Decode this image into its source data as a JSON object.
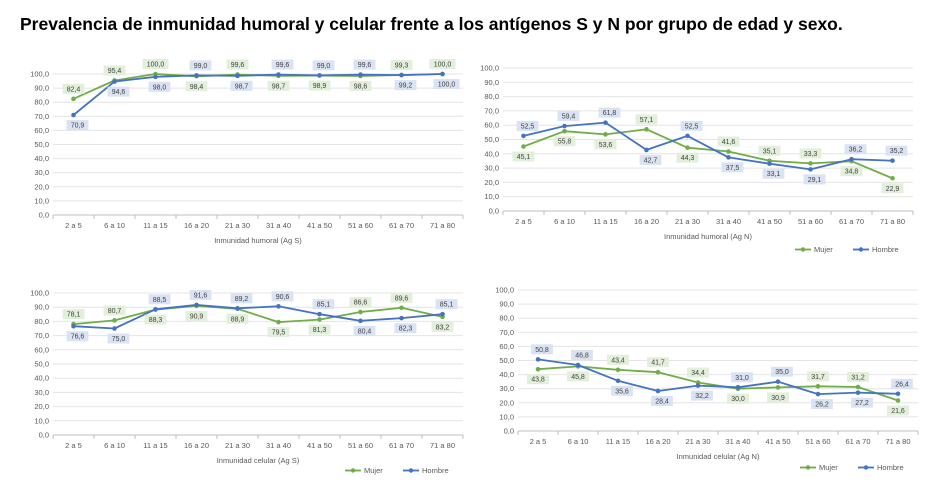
{
  "title": "Prevalencia de inmunidad humoral y celular frente a los antígenos S y N por grupo de edad y sexo.",
  "colors": {
    "mujer": "#70AD47",
    "hombre": "#4472C4",
    "label_mujer_bg": "#E2EFDA",
    "label_hombre_bg": "#DAE3F3"
  },
  "chart_data": [
    {
      "type": "line",
      "xlabel": "Inmunidad humoral (Ag S)",
      "categories": [
        "2 a 5",
        "6 a 10",
        "11 a 15",
        "16 a 20",
        "21 a 30",
        "31 a 40",
        "41 a 50",
        "51 a 60",
        "61 a 70",
        "71 a 80"
      ],
      "ylim": [
        0,
        100
      ],
      "ystep": 10,
      "ytick_labels": [
        "0,0",
        "10,0",
        "20,0",
        "30,0",
        "40,0",
        "50,0",
        "60,0",
        "70,0",
        "80,0",
        "90,0",
        "100,0"
      ],
      "series": [
        {
          "name": "Mujer",
          "values": [
            82.4,
            95.4,
            100.0,
            98.4,
            99.6,
            98.7,
            98.9,
            98.6,
            99.3,
            100.0
          ],
          "labels": [
            "82,4",
            "95,4",
            "100,0",
            "98,4",
            "99,6",
            "98,7",
            "98,9",
            "98,6",
            "99,3",
            "100,0"
          ]
        },
        {
          "name": "Hombre",
          "values": [
            70.9,
            94.6,
            98.0,
            99.0,
            98.7,
            99.6,
            99.0,
            99.6,
            99.2,
            100.0
          ],
          "labels": [
            "70,9",
            "94,6",
            "98,0",
            "99,0",
            "98,7",
            "99,6",
            "99,0",
            "99,6",
            "99,2",
            "100,0"
          ]
        }
      ],
      "legend": false
    },
    {
      "type": "line",
      "xlabel": "Inmunidad humoral (Ag N)",
      "categories": [
        "2 a 5",
        "6 a 10",
        "11 a 15",
        "16 a 20",
        "21 a 30",
        "31 a 40",
        "41 a 50",
        "51 a 60",
        "61 a 70",
        "71 a 80"
      ],
      "ylim": [
        0,
        100
      ],
      "ystep": 10,
      "ytick_labels": [
        "0,0",
        "10,0",
        "20,0",
        "30,0",
        "40,0",
        "50,0",
        "60,0",
        "70,0",
        "80,0",
        "90,0",
        "100,0"
      ],
      "series": [
        {
          "name": "Mujer",
          "values": [
            45.1,
            55.8,
            53.6,
            57.1,
            44.3,
            41.6,
            35.1,
            33.3,
            34.8,
            22.9
          ],
          "labels": [
            "45,1",
            "55,8",
            "53,6",
            "57,1",
            "44,3",
            "41,6",
            "35,1",
            "33,3",
            "34,8",
            "22,9"
          ]
        },
        {
          "name": "Hombre",
          "values": [
            52.5,
            59.4,
            61.8,
            42.7,
            52.5,
            37.5,
            33.1,
            29.1,
            36.2,
            35.2
          ],
          "labels": [
            "52,5",
            "59,4",
            "61,8",
            "42,7",
            "52,5",
            "37,5",
            "33,1",
            "29,1",
            "36,2",
            "35,2"
          ]
        }
      ],
      "legend": "bottom-right"
    },
    {
      "type": "line",
      "xlabel": "Inmunidad celular (Ag S)",
      "categories": [
        "2 a 5",
        "6 a 10",
        "11 a 15",
        "16 a 20",
        "21 a 30",
        "31 a 40",
        "41 a 50",
        "51 a 60",
        "61 a 70",
        "71 a 80"
      ],
      "ylim": [
        0,
        100
      ],
      "ystep": 10,
      "ytick_labels": [
        "0,0",
        "10,0",
        "20,0",
        "30,0",
        "40,0",
        "50,0",
        "60,0",
        "70,0",
        "80,0",
        "90,0",
        "100,0"
      ],
      "series": [
        {
          "name": "Mujer",
          "values": [
            78.1,
            80.7,
            88.3,
            90.9,
            88.9,
            79.5,
            81.3,
            86.6,
            89.6,
            83.2
          ],
          "labels": [
            "78,1",
            "80,7",
            "88,3",
            "90,9",
            "88,9",
            "79,5",
            "81,3",
            "86,6",
            "89,6",
            "83,2"
          ]
        },
        {
          "name": "Hombre",
          "values": [
            76.6,
            75.0,
            88.5,
            91.6,
            89.2,
            90.6,
            85.1,
            80.4,
            82.3,
            85.1
          ],
          "labels": [
            "76,6",
            "75,0",
            "88,5",
            "91,6",
            "89,2",
            "90,6",
            "85,1",
            "80,4",
            "82,3",
            "85,1"
          ]
        }
      ],
      "legend": "bottom-right"
    },
    {
      "type": "line",
      "xlabel": "Inmunidad celular (Ag N)",
      "categories": [
        "2 a 5",
        "6 a 10",
        "11 a 15",
        "16 a 20",
        "21 a 30",
        "31 a 40",
        "41 a 50",
        "51 a 60",
        "61 a 70",
        "71 a 80"
      ],
      "ylim": [
        0,
        100
      ],
      "ystep": 10,
      "ytick_labels": [
        "0,0",
        "10,0",
        "20,0",
        "30,0",
        "40,0",
        "50,0",
        "60,0",
        "70,0",
        "80,0",
        "90,0",
        "100,0"
      ],
      "series": [
        {
          "name": "Mujer",
          "values": [
            43.8,
            45.8,
            43.4,
            41.7,
            34.4,
            30.0,
            30.9,
            31.7,
            31.2,
            21.6
          ],
          "labels": [
            "43,8",
            "45,8",
            "43,4",
            "41,7",
            "34,4",
            "30,0",
            "30,9",
            "31,7",
            "31,2",
            "21,6"
          ]
        },
        {
          "name": "Hombre",
          "values": [
            50.8,
            46.8,
            35.6,
            28.4,
            32.2,
            31.0,
            35.0,
            26.2,
            27.2,
            26.4
          ],
          "labels": [
            "50,8",
            "46,8",
            "35,6",
            "28,4",
            "32,2",
            "31,0",
            "35,0",
            "26,2",
            "27,2",
            "26,4"
          ]
        }
      ],
      "legend": "bottom-right"
    }
  ]
}
